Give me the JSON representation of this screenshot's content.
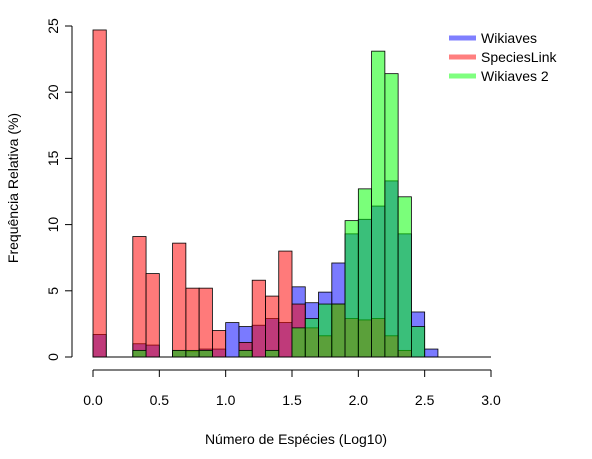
{
  "chart_data": {
    "type": "bar",
    "subtype": "overlapping-histogram",
    "title": "",
    "xlabel": "Número de Espécies (Log10)",
    "ylabel": "Frequência Relativa (%)",
    "xlim": [
      0,
      3
    ],
    "ylim": [
      0,
      25
    ],
    "xticks": [
      "0.0",
      "0.5",
      "1.0",
      "1.5",
      "2.0",
      "2.5",
      "3.0"
    ],
    "yticks": [
      "0",
      "5",
      "10",
      "15",
      "20",
      "25"
    ],
    "bin_width": 0.1,
    "bin_starts": [
      0.0,
      0.1,
      0.2,
      0.3,
      0.4,
      0.5,
      0.6,
      0.7,
      0.8,
      0.9,
      1.0,
      1.1,
      1.2,
      1.3,
      1.4,
      1.5,
      1.6,
      1.7,
      1.8,
      1.9,
      2.0,
      2.1,
      2.2,
      2.3,
      2.4,
      2.5,
      2.6,
      2.7
    ],
    "legend_position": "top-right",
    "series": [
      {
        "name": "Wikiaves",
        "color": "#7f7fff",
        "values": [
          1.7,
          0,
          0,
          1.0,
          0.9,
          0,
          0.5,
          0.4,
          0.6,
          0.6,
          2.6,
          2.3,
          2.4,
          2.9,
          2.6,
          5.3,
          4.1,
          4.9,
          7.1,
          9.3,
          10.4,
          11.4,
          13.3,
          9.3,
          3.4,
          0.6,
          0,
          0
        ]
      },
      {
        "name": "SpeciesLink",
        "color": "#ff7f7f",
        "values": [
          24.7,
          0,
          0,
          9.1,
          6.3,
          0,
          8.6,
          5.2,
          5.2,
          2.0,
          0,
          1.1,
          5.8,
          4.6,
          8.0,
          4.0,
          2.2,
          1.6,
          4.0,
          2.9,
          2.8,
          2.9,
          1.6,
          0.5,
          0,
          0,
          0,
          0
        ]
      },
      {
        "name": "Wikiaves 2",
        "color": "#7fff7f",
        "values": [
          0,
          0,
          0,
          0.5,
          0,
          0,
          0.5,
          0.5,
          0.5,
          0,
          0,
          0.5,
          0,
          0.5,
          0,
          2.2,
          2.9,
          4.0,
          4.0,
          10.3,
          12.7,
          23.1,
          21.4,
          12.1,
          2.3,
          0,
          0,
          0
        ]
      }
    ]
  }
}
